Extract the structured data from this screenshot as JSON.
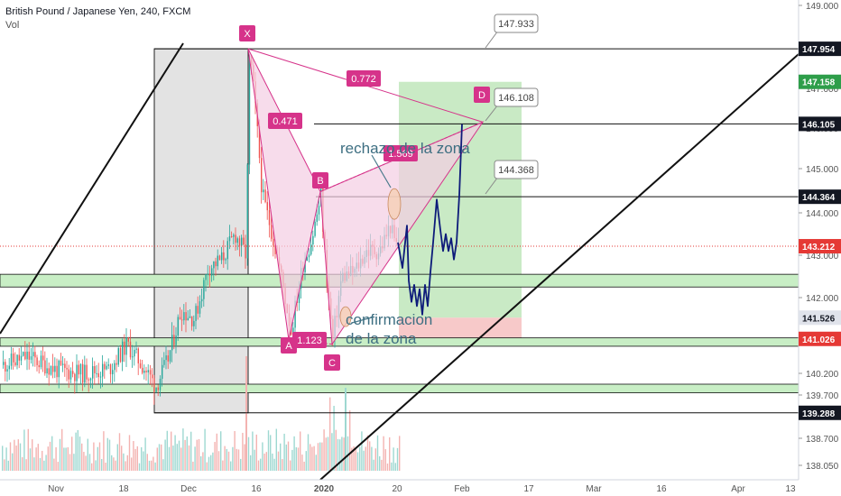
{
  "header": {
    "symbol": "British Pound / Japanese Yen, 240, FXCM",
    "volume_label": "Vol"
  },
  "chart_data": {
    "type": "candlestick",
    "title": "British Pound / Japanese Yen, 240, FXCM",
    "ylim": [
      137.85,
      149.1
    ],
    "y_ticks": [
      "149.000",
      "148.000",
      "147.000",
      "146.000",
      "145.000",
      "144.000",
      "143.000",
      "142.000",
      "141.000",
      "140.200",
      "139.700",
      "138.700",
      "138.050"
    ],
    "x_ticks": [
      "Nov",
      "18",
      "Dec",
      "16",
      "2020",
      "20",
      "Feb",
      "17",
      "Mar",
      "16",
      "Apr",
      "13"
    ],
    "price_labels": [
      {
        "value": 147.954,
        "text": "147.954",
        "style": "dark"
      },
      {
        "value": 147.158,
        "text": "147.158",
        "style": "green"
      },
      {
        "value": 146.105,
        "text": "146.105",
        "style": "dark"
      },
      {
        "value": 144.364,
        "text": "144.364",
        "style": "dark"
      },
      {
        "value": 143.212,
        "text": "143.212",
        "style": "red"
      },
      {
        "value": 141.526,
        "text": "141.526",
        "style": "gray"
      },
      {
        "value": 141.026,
        "text": "141.026",
        "style": "red"
      },
      {
        "value": 139.288,
        "text": "139.288",
        "style": "dark"
      }
    ],
    "callouts": [
      "147.933",
      "146.108",
      "144.368"
    ],
    "pattern_points": [
      "X",
      "A",
      "B",
      "C",
      "D"
    ],
    "pattern_ratios": [
      "0.471",
      "0.772",
      "1.123",
      "1.569"
    ],
    "annotations": [
      "rechazo de la zona",
      "confirmacion de la zona"
    ],
    "colors": {
      "bull": "#26a69a",
      "bear": "#ef5350",
      "pattern": "#d6338a",
      "pattern_fill": "#f4cde3",
      "forecast": "#0d1b7a",
      "target": "#c9eac5",
      "stop": "#f7c9c9",
      "current_price": "#e53935"
    }
  }
}
